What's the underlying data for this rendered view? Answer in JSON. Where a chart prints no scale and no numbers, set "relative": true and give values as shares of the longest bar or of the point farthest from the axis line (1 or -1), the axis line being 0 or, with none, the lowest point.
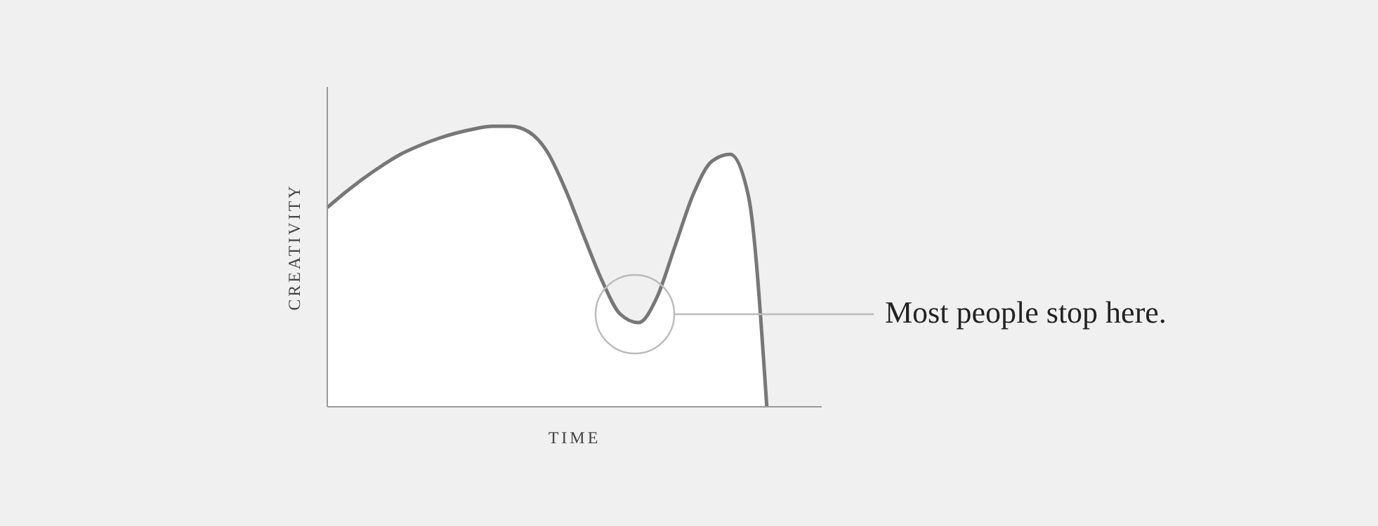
{
  "chart_data": {
    "type": "area",
    "relative": true,
    "xlabel": "TIME",
    "ylabel": "CREATIVITY",
    "annotations": [
      "Most people stop here."
    ],
    "color": "#777777",
    "categories": [
      null,
      null,
      null,
      null,
      null,
      null,
      null,
      null,
      null,
      null,
      null,
      null,
      null,
      null,
      null,
      null,
      null,
      null,
      null,
      null,
      null,
      null,
      null,
      null,
      null,
      null,
      null,
      null
    ],
    "values": [
      0.71,
      0.765,
      0.815,
      0.86,
      0.9,
      0.93,
      0.955,
      0.975,
      0.99,
      1,
      1,
      0.98,
      0.91,
      0.775,
      0.61,
      0.45,
      0.33,
      0.3,
      0.39,
      0.575,
      0.76,
      0.875,
      0.9,
      0.75,
      0,
      null,
      null,
      null
    ]
  }
}
